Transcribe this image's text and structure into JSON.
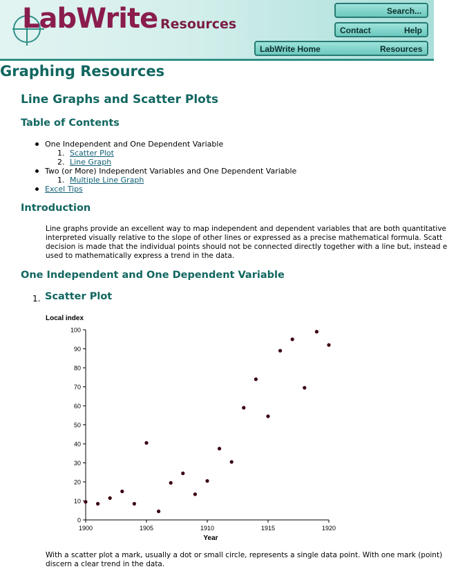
{
  "header": {
    "logo_main": "LabWrite",
    "logo_sub": "Resources",
    "nav": {
      "search": "Search...",
      "contact": "Contact",
      "help": "Help",
      "home": "LabWrite Home",
      "resources": "Resources"
    }
  },
  "page_title": "Graphing Resources",
  "section_title": "Line Graphs and Scatter Plots",
  "toc": {
    "heading": "Table of Contents",
    "item1": "One Independent and One Dependent Variable",
    "item1_sub1_num": "1.",
    "item1_sub1": "Scatter Plot",
    "item1_sub2_num": "2.",
    "item1_sub2": "Line Graph",
    "item2": "Two (or More) Independent Variables and One Dependent Variable",
    "item2_sub1_num": "1.",
    "item2_sub1": "Multiple Line Graph",
    "item3": "Excel Tips"
  },
  "intro": {
    "heading": "Introduction",
    "line1": "Line graphs provide an excellent way to map independent and dependent variables that are both quantitative",
    "line2": "interpreted visually relative to the slope of other lines or expressed as a precise mathematical formula. Scatt",
    "line3": "decision is made that the individual points should not be connected directly together with a line but, instead e",
    "line4": "used to mathematically express a trend in the data."
  },
  "section1": {
    "heading": "One Independent and One Dependent Variable",
    "sub_num": "1.",
    "sub_heading": "Scatter Plot"
  },
  "chart_data": {
    "type": "scatter",
    "title": "",
    "xlabel": "Year",
    "ylabel": "Local index",
    "xlim": [
      1900,
      1920
    ],
    "ylim": [
      0,
      100
    ],
    "x_ticks": [
      1900,
      1905,
      1910,
      1915,
      1920
    ],
    "y_ticks": [
      0,
      10,
      20,
      30,
      40,
      50,
      60,
      70,
      80,
      90,
      100
    ],
    "grid": false,
    "point_color": "#3a0010",
    "x": [
      1900,
      1901,
      1902,
      1903,
      1904,
      1905,
      1906,
      1907,
      1908,
      1909,
      1910,
      1911,
      1912,
      1913,
      1914,
      1915,
      1916,
      1917,
      1918,
      1919,
      1920
    ],
    "y": [
      9.5,
      8.5,
      11.5,
      15,
      8.5,
      40.5,
      4.5,
      19.5,
      24.5,
      13.5,
      20.5,
      37.5,
      30.5,
      59,
      74,
      54.5,
      89,
      95,
      69.5,
      99,
      92
    ]
  },
  "closing": {
    "line1": "With a scatter plot a mark, usually a dot or small circle, represents a single data point. With one mark (point)",
    "line2": "discern a clear trend in the data."
  }
}
